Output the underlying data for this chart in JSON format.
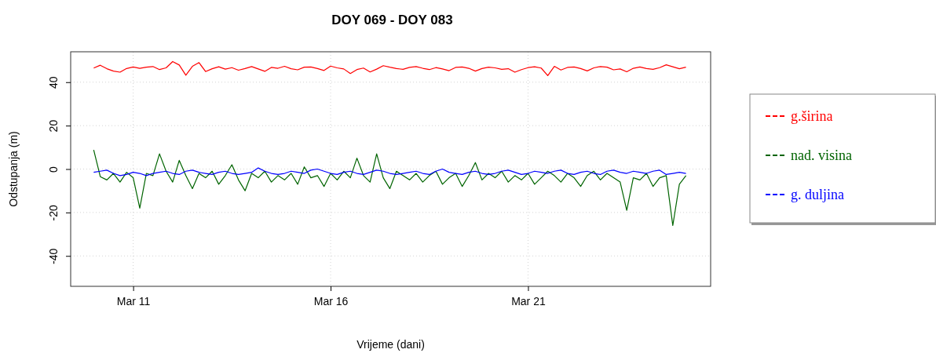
{
  "chart_data": {
    "type": "line",
    "title": "DOY 069 - DOY 083",
    "xlabel": "Vrijeme (dani)",
    "ylabel": "Odstupanja (m)",
    "x": [
      "--03-10T00:00",
      "--03-10T04:00",
      "--03-10T08:00",
      "--03-10T12:00",
      "--03-10T16:00",
      "--03-10T20:00",
      "--03-11T00:00",
      "--03-11T04:00",
      "--03-11T08:00",
      "--03-11T12:00",
      "--03-11T16:00",
      "--03-11T20:00",
      "--03-12T00:00",
      "--03-12T04:00",
      "--03-12T08:00",
      "--03-12T12:00",
      "--03-12T16:00",
      "--03-12T20:00",
      "--03-13T00:00",
      "--03-13T04:00",
      "--03-13T08:00",
      "--03-13T12:00",
      "--03-13T16:00",
      "--03-13T20:00",
      "--03-14T00:00",
      "--03-14T04:00",
      "--03-14T08:00",
      "--03-14T12:00",
      "--03-14T16:00",
      "--03-14T20:00",
      "--03-15T00:00",
      "--03-15T04:00",
      "--03-15T08:00",
      "--03-15T12:00",
      "--03-15T16:00",
      "--03-15T20:00",
      "--03-16T00:00",
      "--03-16T04:00",
      "--03-16T08:00",
      "--03-16T12:00",
      "--03-16T16:00",
      "--03-16T20:00",
      "--03-17T00:00",
      "--03-17T04:00",
      "--03-17T08:00",
      "--03-17T12:00",
      "--03-17T16:00",
      "--03-17T20:00",
      "--03-18T00:00",
      "--03-18T04:00",
      "--03-18T08:00",
      "--03-18T12:00",
      "--03-18T16:00",
      "--03-18T20:00",
      "--03-19T00:00",
      "--03-19T04:00",
      "--03-19T08:00",
      "--03-19T12:00",
      "--03-19T16:00",
      "--03-19T20:00",
      "--03-20T00:00",
      "--03-20T04:00",
      "--03-20T08:00",
      "--03-20T12:00",
      "--03-20T16:00",
      "--03-20T20:00",
      "--03-21T00:00",
      "--03-21T04:00",
      "--03-21T08:00",
      "--03-21T12:00",
      "--03-21T16:00",
      "--03-21T20:00",
      "--03-22T00:00",
      "--03-22T04:00",
      "--03-22T08:00",
      "--03-22T12:00",
      "--03-22T16:00",
      "--03-22T20:00",
      "--03-23T00:00",
      "--03-23T04:00",
      "--03-23T08:00",
      "--03-23T12:00",
      "--03-23T16:00",
      "--03-23T20:00",
      "--03-24T00:00",
      "--03-24T04:00",
      "--03-24T08:00",
      "--03-24T12:00",
      "--03-24T16:00",
      "--03-24T20:00",
      "--03-25T00:00"
    ],
    "series": [
      {
        "name": "g.širina",
        "color": "#ff0000",
        "values": [
          46.5,
          47.8,
          46.2,
          45.1,
          44.6,
          46.3,
          47.0,
          46.4,
          46.9,
          47.2,
          45.8,
          46.6,
          49.5,
          47.9,
          43.2,
          47.3,
          49.0,
          44.9,
          46.2,
          47.1,
          46.0,
          46.7,
          45.5,
          46.3,
          47.2,
          46.1,
          45.0,
          46.8,
          46.4,
          47.3,
          46.2,
          45.7,
          46.9,
          47.0,
          46.3,
          45.4,
          47.4,
          46.6,
          46.1,
          44.0,
          45.8,
          46.5,
          44.7,
          46.0,
          47.6,
          46.9,
          46.3,
          45.9,
          46.8,
          47.2,
          46.4,
          45.8,
          46.7,
          46.1,
          45.3,
          46.8,
          47.0,
          46.4,
          45.1,
          46.3,
          46.9,
          46.6,
          45.9,
          46.2,
          44.6,
          45.8,
          46.7,
          47.1,
          46.5,
          43.0,
          47.3,
          45.6,
          46.8,
          47.0,
          46.3,
          45.2,
          46.6,
          47.2,
          46.9,
          45.7,
          46.1,
          44.8,
          46.4,
          47.0,
          46.3,
          45.9,
          46.7,
          48.0,
          47.1,
          46.2,
          46.9
        ]
      },
      {
        "name": "nad. visina",
        "color": "#006400",
        "values": [
          8.8,
          -3.5,
          -5,
          -2,
          -6,
          -1.5,
          -4,
          -18,
          -2,
          -3,
          7,
          -1,
          -6,
          4,
          -3,
          -9,
          -2,
          -4,
          -1,
          -7,
          -3,
          2,
          -5,
          -10,
          -2,
          -4,
          -1,
          -6,
          -3,
          -5,
          -2,
          -7,
          1,
          -4,
          -3,
          -8,
          -2,
          -5,
          -1,
          -4,
          5,
          -3,
          -6,
          7,
          -4,
          -9,
          -1,
          -3,
          -5,
          -2,
          -6,
          -3,
          -1,
          -7,
          -4,
          -2,
          -8,
          -3,
          3,
          -5,
          -2,
          -4,
          -1,
          -6,
          -3,
          -5,
          -2,
          -7,
          -4,
          -1,
          -3,
          -6,
          -2,
          -4,
          -8,
          -3,
          -1,
          -5,
          -2,
          -4,
          -6,
          -19,
          -4,
          -5,
          -2,
          -8,
          -4,
          -3,
          -26,
          -7,
          -3
        ]
      },
      {
        "name": "g. duljina",
        "color": "#0000ff",
        "values": [
          -1.5,
          -1,
          -0.5,
          -2,
          -3,
          -2.5,
          -1.5,
          -2,
          -3,
          -2,
          -1.5,
          -1,
          -2,
          -2.5,
          -1,
          -0.5,
          -1.5,
          -2,
          -2.5,
          -1.5,
          -1,
          -2,
          -2.5,
          -2,
          -1.5,
          0.5,
          -1,
          -2,
          -2.5,
          -2,
          -1,
          -1.5,
          -2,
          -0.5,
          0,
          -1,
          -2,
          -2.5,
          -1.5,
          -1,
          -2,
          -2.5,
          -1.5,
          -0.5,
          -1,
          -2,
          -2.5,
          -2,
          -1.5,
          -1,
          -2,
          -2.5,
          -1,
          0,
          -1.5,
          -2,
          -2.5,
          -1.5,
          -1,
          -2,
          -2.5,
          -2,
          -1,
          -0.5,
          -1.5,
          -2.5,
          -2,
          -1,
          -1.5,
          -2,
          -1,
          -0.5,
          -2,
          -2.5,
          -1.5,
          -1,
          -2,
          -2.5,
          -1,
          -0.5,
          -1.5,
          -2,
          -1,
          -1.5,
          -2,
          -1,
          -0.5,
          -2.5,
          -2,
          -1.5,
          -2
        ]
      }
    ],
    "xlim": [
      "--03-09T10:00",
      "--03-25T15:00"
    ],
    "xticks": [
      {
        "value": "--03-11",
        "label": "Mar 11"
      },
      {
        "value": "--03-16",
        "label": "Mar 16"
      },
      {
        "value": "--03-21",
        "label": "Mar 21"
      }
    ],
    "ylim": [
      -54,
      54
    ],
    "yticks": [
      -40,
      -20,
      0,
      20,
      40
    ],
    "grid": true,
    "legend": "right",
    "line_style": "solid",
    "marker": "none"
  }
}
